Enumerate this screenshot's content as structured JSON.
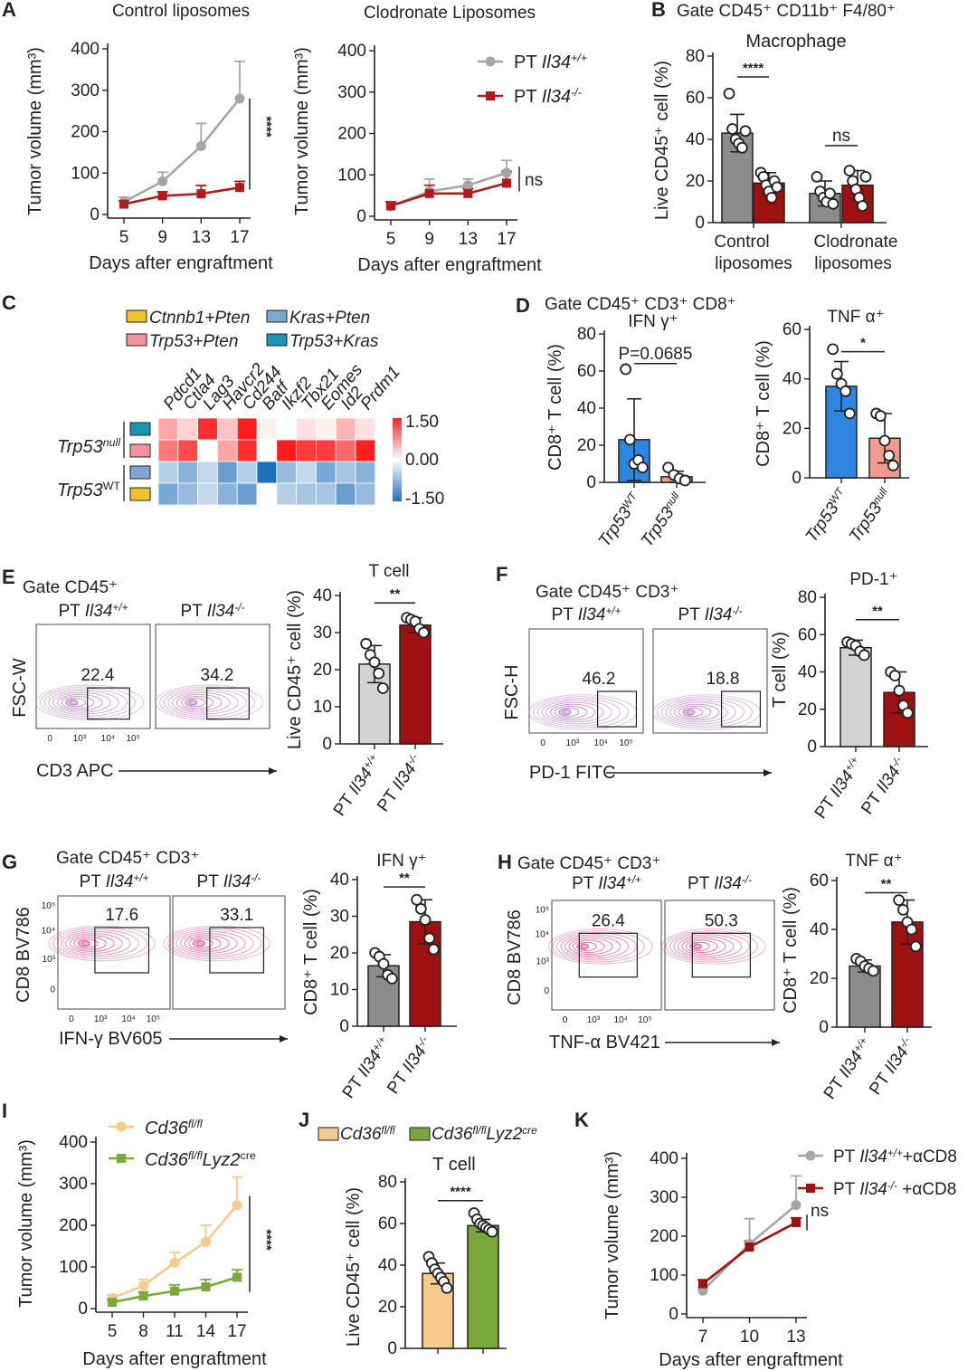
{
  "panel_labels": [
    "A",
    "B",
    "C",
    "D",
    "E",
    "F",
    "G",
    "H",
    "I",
    "J",
    "K"
  ],
  "chart_data": [
    {
      "id": "A1",
      "type": "line",
      "title": "Control liposomes",
      "xlabel": "Days after engraftment",
      "ylabel": "Tumor volume (mm³)",
      "x": [
        5,
        9,
        13,
        17
      ],
      "ylim": [
        0,
        400
      ],
      "yticks": [
        0,
        100,
        200,
        300,
        400
      ],
      "series": [
        {
          "name": "PT Il34+/+",
          "color": "#a6a6a6",
          "marker": "circle",
          "values": [
            30,
            80,
            165,
            280
          ],
          "err": [
            12,
            22,
            55,
            90
          ]
        },
        {
          "name": "PT Il34-/-",
          "color": "#b01c1c",
          "marker": "square",
          "values": [
            25,
            45,
            50,
            65
          ],
          "err": [
            8,
            10,
            20,
            15
          ]
        }
      ],
      "significance": "****"
    },
    {
      "id": "A2",
      "type": "line",
      "title": "Clodronate Liposomes",
      "xlabel": "Days after engraftment",
      "ylabel": "Tumor volume (mm³)",
      "x": [
        5,
        9,
        13,
        17
      ],
      "ylim": [
        0,
        400
      ],
      "yticks": [
        0,
        100,
        200,
        300,
        400
      ],
      "legend": [
        {
          "prefix": "PT ",
          "gene": "Il34",
          "sup": "+/+"
        },
        {
          "prefix": "PT ",
          "gene": "Il34",
          "sup": "-/-"
        }
      ],
      "series": [
        {
          "name": "PT Il34+/+",
          "color": "#a6a6a6",
          "marker": "circle",
          "values": [
            25,
            60,
            75,
            105
          ],
          "err": [
            10,
            30,
            15,
            30
          ]
        },
        {
          "name": "PT Il34-/-",
          "color": "#b01c1c",
          "marker": "square",
          "values": [
            25,
            55,
            55,
            80
          ],
          "err": [
            10,
            20,
            12,
            28
          ]
        }
      ],
      "significance": "ns"
    },
    {
      "id": "B",
      "type": "bar",
      "title": "Gate CD45⁺ CD11b⁺ F4/80⁺",
      "subtitle": "Macrophage",
      "ylabel": "Live CD45⁺ cell (%)",
      "ylim": [
        0,
        80
      ],
      "yticks": [
        0,
        20,
        40,
        60,
        80
      ],
      "groups": [
        [
          "Control",
          "liposomes"
        ],
        [
          "Clodronate",
          "liposomes"
        ]
      ],
      "series": [
        {
          "name": "PT Il34+/+",
          "color": "#8c8c8c",
          "values": [
            43,
            14
          ],
          "err": [
            9,
            6
          ],
          "points": [
            [
              62,
              45,
              40,
              38,
              36,
              44
            ],
            [
              22,
              15,
              12,
              10,
              14,
              9
            ]
          ]
        },
        {
          "name": "PT Il34-/-",
          "color": "#9e1111",
          "values": [
            19,
            18
          ],
          "err": [
            5,
            7
          ],
          "points": [
            [
              24,
              22,
              18,
              15,
              12,
              20,
              17
            ],
            [
              25,
              20,
              16,
              12,
              8,
              22
            ]
          ]
        }
      ],
      "significance": [
        "****",
        "ns"
      ]
    },
    {
      "id": "C",
      "type": "heatmap",
      "legend": [
        {
          "label": "Ctnnb1+Pten",
          "color": "#f2c12e"
        },
        {
          "label": "Kras+Pten",
          "color": "#7fa8d1"
        },
        {
          "label": "Trp53+Pten",
          "color": "#f1919b"
        },
        {
          "label": "Trp53+Kras",
          "color": "#1a93b5"
        }
      ],
      "columns": [
        "Pdcd1",
        "Ctla4",
        "Lag3",
        "Havcr2",
        "Cd244",
        "Batf",
        "Ikzf2",
        "Tbx21",
        "Eomes",
        "Id2",
        "Prdm1"
      ],
      "rows": [
        {
          "group": "Trp53null",
          "condition": "Trp53+Kras",
          "values": [
            0.6,
            0.3,
            1.4,
            0.4,
            1.5,
            0.1,
            0.0,
            0.2,
            0.1,
            0.5,
            0.2
          ]
        },
        {
          "group": "Trp53null",
          "condition": "Trp53+Pten",
          "values": [
            0.9,
            1.2,
            0.0,
            0.6,
            1.4,
            0.0,
            1.5,
            1.3,
            1.3,
            1.0,
            1.5
          ]
        },
        {
          "group": "Trp53WT",
          "condition": "Kras+Pten",
          "values": [
            -0.5,
            -0.8,
            -0.4,
            -1.0,
            -0.5,
            -1.5,
            -0.7,
            -0.4,
            -0.9,
            -0.6,
            -0.8
          ]
        },
        {
          "group": "Trp53WT",
          "condition": "Ctnnb1+Pten",
          "values": [
            -0.9,
            -0.7,
            -0.4,
            -0.8,
            -1.0,
            0.0,
            -0.5,
            -0.6,
            -0.6,
            -1.0,
            -0.7
          ]
        }
      ],
      "group_labels": [
        {
          "gene": "Trp53",
          "sup": "null"
        },
        {
          "gene": "Trp53",
          "sup": "WT"
        }
      ],
      "scale": {
        "min": -1.5,
        "max": 1.5,
        "labels": [
          "1.50",
          "0.00",
          "-1.50"
        ]
      }
    },
    {
      "id": "D1",
      "type": "bar",
      "title": "Gate CD45⁺ CD3⁺ CD8⁺",
      "subtitle": "IFN γ⁺",
      "ylabel": "CD8⁺ T cell (%)",
      "ylim": [
        0,
        80
      ],
      "yticks": [
        0,
        20,
        40,
        60,
        80
      ],
      "categories": [
        {
          "gene": "Trp53",
          "sup": "WT"
        },
        {
          "gene": "Trp53",
          "sup": "null"
        }
      ],
      "colors": [
        "#2f86e0",
        "#f29a8e"
      ],
      "values": [
        23,
        3
      ],
      "err": [
        22,
        3
      ],
      "points": [
        [
          61,
          23,
          10,
          12,
          8
        ],
        [
          8,
          4,
          2,
          1
        ]
      ],
      "significance": "P=0.0685"
    },
    {
      "id": "D2",
      "type": "bar",
      "subtitle": "TNF α⁺",
      "ylabel": "CD8⁺ T cell (%)",
      "ylim": [
        0,
        60
      ],
      "yticks": [
        0,
        20,
        40,
        60
      ],
      "categories": [
        {
          "gene": "Trp53",
          "sup": "WT"
        },
        {
          "gene": "Trp53",
          "sup": "null"
        }
      ],
      "colors": [
        "#2f86e0",
        "#f29a8e"
      ],
      "values": [
        37,
        16
      ],
      "err": [
        10,
        10
      ],
      "points": [
        [
          52,
          42,
          38,
          35,
          26
        ],
        [
          26,
          25,
          15,
          9,
          5
        ]
      ],
      "significance": "*"
    },
    {
      "id": "E-flow",
      "type": "scatter",
      "title": "Gate CD45⁺",
      "xlabel": "CD3 APC",
      "ylabel": "FSC-W",
      "samples": [
        {
          "gene": "Il34",
          "sup": "+/+",
          "gate": "22.4"
        },
        {
          "gene": "Il34",
          "sup": "-/-",
          "gate": "34.2"
        }
      ],
      "xticks": [
        "0",
        "10³",
        "10⁴",
        "10⁵"
      ]
    },
    {
      "id": "E",
      "type": "bar",
      "title": "T cell",
      "ylabel": "Live CD45⁺ cell (%)",
      "ylim": [
        0,
        40
      ],
      "yticks": [
        0,
        10,
        20,
        30,
        40
      ],
      "categories": [
        {
          "gene": "Il34",
          "sup": "+/+"
        },
        {
          "gene": "Il34",
          "sup": "-/-"
        }
      ],
      "colors": [
        "#d3d3d3",
        "#9e1111"
      ],
      "values": [
        21.5,
        32
      ],
      "err": [
        5,
        2
      ],
      "points": [
        [
          27,
          24,
          22,
          19,
          15
        ],
        [
          34,
          33.5,
          33,
          31,
          30
        ]
      ],
      "significance": "**"
    },
    {
      "id": "F-flow",
      "type": "scatter",
      "title": "Gate CD45⁺ CD3⁺",
      "xlabel": "PD-1 FITC",
      "ylabel": "FSC-H",
      "samples": [
        {
          "gene": "Il34",
          "sup": "+/+",
          "gate": "46.2"
        },
        {
          "gene": "Il34",
          "sup": "-/-",
          "gate": "18.8"
        }
      ],
      "xticks": [
        "0",
        "10³",
        "10⁴",
        "10⁵"
      ]
    },
    {
      "id": "F",
      "type": "bar",
      "title": "PD-1⁺",
      "ylabel": "T cell (%)",
      "ylim": [
        0,
        80
      ],
      "yticks": [
        0,
        20,
        40,
        60,
        80
      ],
      "categories": [
        {
          "gene": "Il34",
          "sup": "+/+"
        },
        {
          "gene": "Il34",
          "sup": "-/-"
        }
      ],
      "colors": [
        "#d3d3d3",
        "#9e1111"
      ],
      "values": [
        53,
        29
      ],
      "err": [
        4,
        11
      ],
      "points": [
        [
          56,
          55,
          54,
          51,
          49
        ],
        [
          40,
          38,
          30,
          22,
          18
        ]
      ],
      "significance": "**"
    },
    {
      "id": "G-flow",
      "type": "scatter",
      "title": "Gate CD45⁺ CD3⁺",
      "xlabel": "IFN-γ BV605",
      "ylabel": "CD8 BV786",
      "samples": [
        {
          "gene": "Il34",
          "sup": "+/+",
          "gate": "17.6"
        },
        {
          "gene": "Il34",
          "sup": "-/-",
          "gate": "33.1"
        }
      ],
      "xticks": [
        "0",
        "10³",
        "10⁴",
        "10⁵"
      ],
      "yticks": [
        "10⁵",
        "10⁴",
        "10³",
        "0"
      ]
    },
    {
      "id": "G",
      "type": "bar",
      "title": "IFN γ⁺",
      "ylabel": "CD8⁺ T cell (%)",
      "ylim": [
        0,
        40
      ],
      "yticks": [
        0,
        10,
        20,
        30,
        40
      ],
      "categories": [
        {
          "gene": "Il34",
          "sup": "+/+"
        },
        {
          "gene": "Il34",
          "sup": "-/-"
        }
      ],
      "colors": [
        "#8c8c8c",
        "#9e1111"
      ],
      "values": [
        16.5,
        28.5
      ],
      "err": [
        3,
        6
      ],
      "points": [
        [
          20,
          19,
          17,
          14,
          13
        ],
        [
          34.5,
          32,
          29,
          24,
          21
        ]
      ],
      "significance": "**"
    },
    {
      "id": "H-flow",
      "type": "scatter",
      "title": "Gate CD45⁺ CD3⁺",
      "xlabel": "TNF-α BV421",
      "ylabel": "CD8 BV786",
      "samples": [
        {
          "gene": "Il34",
          "sup": "+/+",
          "gate": "26.4"
        },
        {
          "gene": "Il34",
          "sup": "-/-",
          "gate": "50.3"
        }
      ],
      "xticks": [
        "0",
        "10³",
        "10⁴",
        "10⁵"
      ],
      "yticks": [
        "10⁵",
        "10⁴",
        "10³",
        "0"
      ]
    },
    {
      "id": "H",
      "type": "bar",
      "title": "TNF α⁺",
      "ylabel": "CD8⁺ T cell (%)",
      "ylim": [
        0,
        60
      ],
      "yticks": [
        0,
        20,
        40,
        60
      ],
      "categories": [
        {
          "gene": "Il34",
          "sup": "+/+"
        },
        {
          "gene": "Il34",
          "sup": "-/-"
        }
      ],
      "colors": [
        "#8c8c8c",
        "#9e1111"
      ],
      "values": [
        25,
        43
      ],
      "err": [
        2.5,
        9
      ],
      "points": [
        [
          28,
          27,
          25,
          24,
          23
        ],
        [
          52,
          48,
          43,
          40,
          33
        ]
      ],
      "significance": "**"
    },
    {
      "id": "I",
      "type": "line",
      "xlabel": "Days after engraftment",
      "ylabel": "Tumor volume (mm³)",
      "x": [
        5,
        8,
        11,
        14,
        17
      ],
      "ylim": [
        0,
        400
      ],
      "yticks": [
        0,
        100,
        200,
        300,
        400
      ],
      "legend": [
        {
          "gene": "Cd36",
          "sup": "fl/fl",
          "extra": "",
          "extra_sup": ""
        },
        {
          "gene": "Cd36",
          "sup": "fl/fl",
          "extra": "Lyz2",
          "extra_sup": "cre"
        }
      ],
      "series": [
        {
          "name": "Cd36fl/fl",
          "color": "#f7c98b",
          "marker": "circle",
          "values": [
            25,
            55,
            110,
            160,
            248
          ],
          "err": [
            8,
            15,
            25,
            40,
            68
          ]
        },
        {
          "name": "Cd36fl/fl Lyz2cre",
          "color": "#78a93a",
          "marker": "square",
          "values": [
            15,
            30,
            42,
            52,
            75
          ],
          "err": [
            5,
            10,
            15,
            18,
            18
          ]
        }
      ],
      "significance": "****"
    },
    {
      "id": "J",
      "type": "bar",
      "title": "T cell",
      "ylabel": "Live CD45⁺ cell (%)",
      "ylim": [
        0,
        80
      ],
      "yticks": [
        0,
        20,
        40,
        60,
        80
      ],
      "legend": [
        {
          "gene": "Cd36",
          "sup": "fl/fl",
          "extra": "",
          "extra_sup": "",
          "color": "#f7c98b"
        },
        {
          "gene": "Cd36",
          "sup": "fl/fl",
          "extra": "Lyz2",
          "extra_sup": "cre",
          "color": "#78a93a"
        }
      ],
      "colors": [
        "#f7c98b",
        "#78a93a"
      ],
      "values": [
        36,
        59
      ],
      "err": [
        5,
        3
      ],
      "points": [
        [
          44,
          41,
          38,
          36,
          34,
          32,
          29
        ],
        [
          65,
          62,
          60,
          59,
          58,
          57,
          56
        ]
      ],
      "significance": "****"
    },
    {
      "id": "K",
      "type": "line",
      "xlabel": "Days after engraftment",
      "ylabel": "Tumor volume (mm³)",
      "x": [
        7,
        10,
        13
      ],
      "ylim": [
        0,
        400
      ],
      "yticks": [
        0,
        100,
        200,
        300,
        400
      ],
      "legend": [
        {
          "prefix": "PT ",
          "gene": "Il34",
          "sup": "+/+",
          "suffix": "+αCD8"
        },
        {
          "prefix": "PT ",
          "gene": "Il34",
          "sup": "-/-",
          "suffix": " +αCD8"
        }
      ],
      "series": [
        {
          "name": "PT Il34+/+ +αCD8",
          "color": "#a6a6a6",
          "marker": "circle",
          "values": [
            60,
            180,
            280
          ],
          "err": [
            8,
            65,
            75
          ]
        },
        {
          "name": "PT Il34-/- +αCD8",
          "color": "#9e1111",
          "marker": "square",
          "values": [
            78,
            172,
            235
          ],
          "err": [
            10,
            15,
            12
          ]
        }
      ],
      "significance": "ns"
    }
  ]
}
